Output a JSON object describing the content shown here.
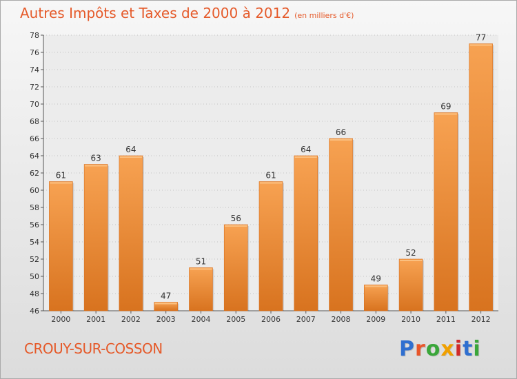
{
  "header": {
    "title": "Autres Impôts et Taxes de 2000 à 2012",
    "unit": "(en milliers d'€)"
  },
  "footer": {
    "commune": "CROUY-SUR-COSSON",
    "logo": [
      "P",
      "r",
      "o",
      "x",
      "i",
      "t",
      "i"
    ],
    "logo_colors": [
      "#2f6fd0",
      "#e8562a",
      "#3aa63a",
      "#f0a000",
      "#d02a2a",
      "#2f6fd0",
      "#3aa63a"
    ]
  },
  "chart_data": {
    "type": "bar",
    "title": "Autres Impôts et Taxes de 2000 à 2012",
    "categories": [
      "2000",
      "2001",
      "2002",
      "2003",
      "2004",
      "2005",
      "2006",
      "2007",
      "2008",
      "2009",
      "2010",
      "2011",
      "2012"
    ],
    "values": [
      61,
      63,
      64,
      47,
      51,
      56,
      61,
      64,
      66,
      49,
      52,
      69,
      77
    ],
    "xlabel": "",
    "ylabel": "",
    "ylim": [
      46,
      78
    ],
    "yticks": [
      46,
      48,
      50,
      52,
      54,
      56,
      58,
      60,
      62,
      64,
      66,
      68,
      70,
      72,
      74,
      76,
      78
    ],
    "grid": true,
    "bar_color": "#f0943e"
  }
}
